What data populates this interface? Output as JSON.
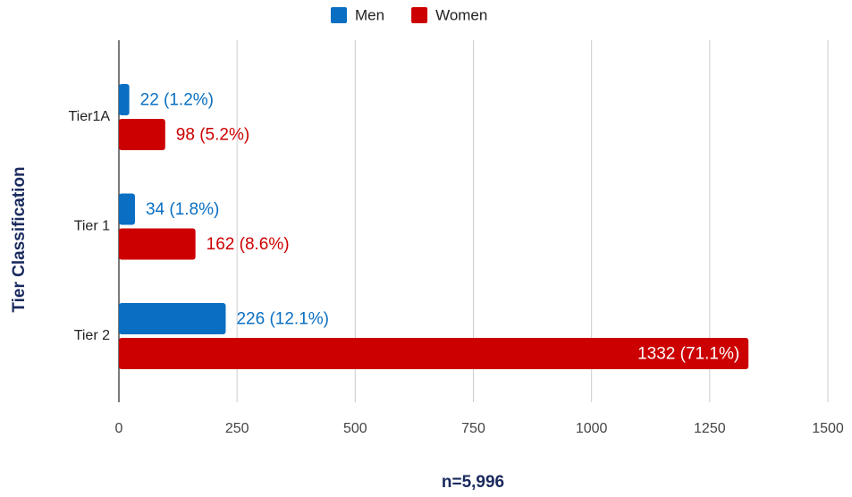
{
  "chart_data": {
    "type": "bar",
    "orientation": "horizontal",
    "x_label": "n=5,996",
    "y_label": "Tier Classification",
    "categories": [
      "Tier1A",
      "Tier 1",
      "Tier 2"
    ],
    "series": [
      {
        "name": "Men",
        "color": "#0a6fc2",
        "values": [
          22,
          34,
          226
        ],
        "value_labels": [
          "22 (1.2%)",
          "34 (1.8%)",
          "226 (12.1%)"
        ]
      },
      {
        "name": "Women",
        "color": "#cc0000",
        "values": [
          98,
          162,
          1332
        ],
        "value_labels": [
          "98 (5.2%)",
          "162 (8.6%)",
          "1332 (71.1%)"
        ]
      }
    ],
    "xlim": [
      0,
      1500
    ],
    "xticks": [
      0,
      250,
      500,
      750,
      1000,
      1250,
      1500
    ],
    "grid": true,
    "legend": "top"
  }
}
